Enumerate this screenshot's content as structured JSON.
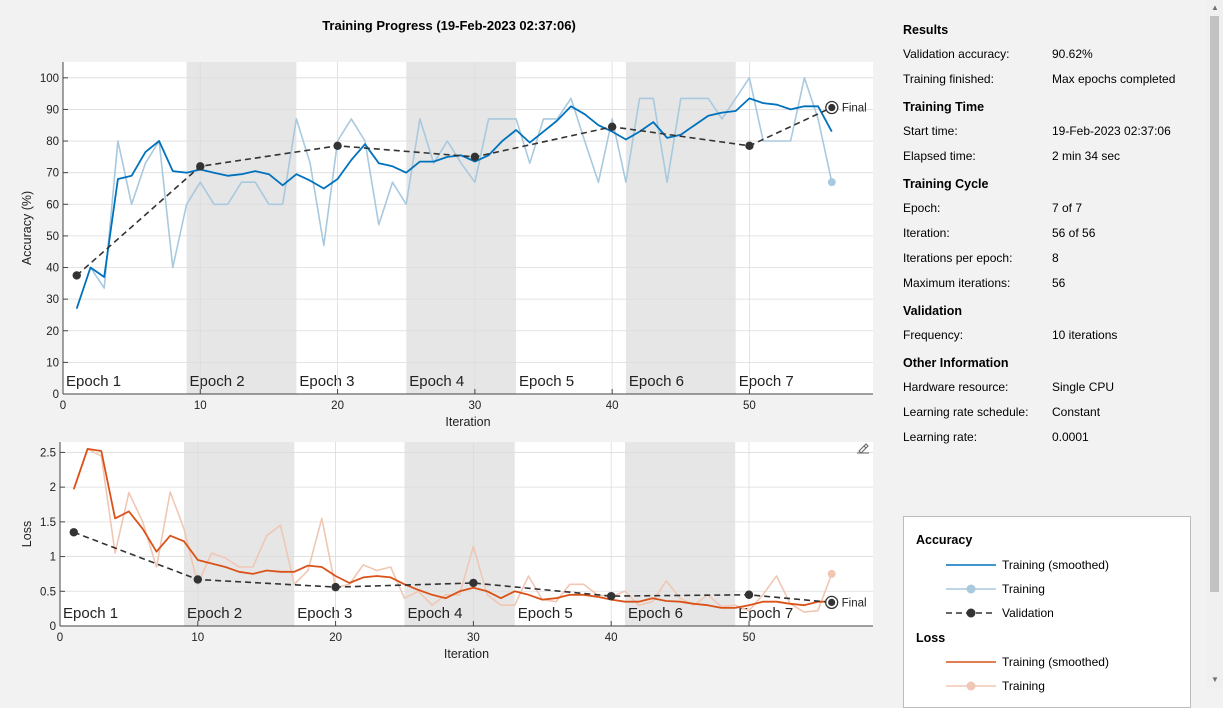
{
  "title": "Training Progress (19-Feb-2023 02:37:06)",
  "colors": {
    "smoothed_acc": "#0072bd",
    "training_acc": "#a9c9de",
    "validation": "#333333",
    "smoothed_loss": "#d95319",
    "training_loss": "#f0c7b4",
    "epoch_shade": "#e6e6e6"
  },
  "results": {
    "heading": "Results",
    "validation_accuracy": {
      "label": "Validation accuracy:",
      "value": "90.62%"
    },
    "training_finished": {
      "label": "Training finished:",
      "value": "Max epochs completed"
    }
  },
  "training_time": {
    "heading": "Training Time",
    "start_time": {
      "label": "Start time:",
      "value": "19-Feb-2023 02:37:06"
    },
    "elapsed_time": {
      "label": "Elapsed time:",
      "value": "2 min 34 sec"
    }
  },
  "training_cycle": {
    "heading": "Training Cycle",
    "epoch": {
      "label": "Epoch:",
      "value": "7 of 7"
    },
    "iteration": {
      "label": "Iteration:",
      "value": "56 of 56"
    },
    "iterations_per_epoch": {
      "label": "Iterations per epoch:",
      "value": "8"
    },
    "maximum_iterations": {
      "label": "Maximum iterations:",
      "value": "56"
    }
  },
  "validation": {
    "heading": "Validation",
    "frequency": {
      "label": "Frequency:",
      "value": "10 iterations"
    }
  },
  "other_information": {
    "heading": "Other Information",
    "hardware_resource": {
      "label": "Hardware resource:",
      "value": "Single CPU"
    },
    "learning_rate_schedule": {
      "label": "Learning rate schedule:",
      "value": "Constant"
    },
    "learning_rate": {
      "label": "Learning rate:",
      "value": "0.0001"
    }
  },
  "legend": {
    "accuracy_heading": "Accuracy",
    "accuracy_items": [
      "Training (smoothed)",
      "Training",
      "Validation"
    ],
    "loss_heading": "Loss",
    "loss_items": [
      "Training (smoothed)",
      "Training"
    ]
  },
  "chart_data": [
    {
      "type": "line",
      "xlabel": "Iteration",
      "ylabel": "Accuracy (%)",
      "xlim": [
        0,
        59
      ],
      "ylim": [
        0,
        105
      ],
      "xticks": [
        0,
        10,
        20,
        30,
        40,
        50
      ],
      "yticks": [
        0,
        10,
        20,
        30,
        40,
        50,
        60,
        70,
        80,
        90,
        100
      ],
      "epochs": [
        "Epoch 1",
        "Epoch 2",
        "Epoch 3",
        "Epoch 4",
        "Epoch 5",
        "Epoch 6",
        "Epoch 7"
      ],
      "iterations_per_epoch": 8,
      "final_label": "Final",
      "series": [
        {
          "name": "Training (smoothed)",
          "x": [
            1,
            2,
            3,
            4,
            5,
            6,
            7,
            8,
            9,
            10,
            11,
            12,
            13,
            14,
            15,
            16,
            17,
            18,
            19,
            20,
            21,
            22,
            23,
            24,
            25,
            26,
            27,
            28,
            29,
            30,
            31,
            32,
            33,
            34,
            35,
            36,
            37,
            38,
            39,
            40,
            41,
            42,
            43,
            44,
            45,
            46,
            47,
            48,
            49,
            50,
            51,
            52,
            53,
            54,
            55,
            56
          ],
          "y": [
            27,
            40,
            37,
            68,
            69,
            76.5,
            80,
            70.5,
            70,
            71,
            70,
            69,
            69.5,
            70.5,
            69.5,
            66,
            69.5,
            67.5,
            65,
            68,
            74,
            79,
            73,
            72,
            70,
            73.5,
            73.5,
            75,
            75.5,
            73.5,
            75.5,
            80,
            83.5,
            79.5,
            83,
            86.5,
            91,
            88.5,
            85,
            83,
            80.5,
            83,
            86,
            81,
            82,
            85,
            88,
            89,
            89.5,
            93.5,
            92,
            91.5,
            90,
            91,
            91,
            83
          ]
        },
        {
          "name": "Training",
          "x": [
            1,
            2,
            3,
            4,
            5,
            6,
            7,
            8,
            9,
            10,
            11,
            12,
            13,
            14,
            15,
            16,
            17,
            18,
            19,
            20,
            21,
            22,
            23,
            24,
            25,
            26,
            27,
            28,
            29,
            30,
            31,
            32,
            33,
            34,
            35,
            36,
            37,
            38,
            39,
            40,
            41,
            42,
            43,
            44,
            45,
            46,
            47,
            48,
            49,
            50,
            51,
            52,
            53,
            54,
            55,
            56
          ],
          "y": [
            27,
            40,
            33.5,
            80,
            60,
            73,
            80,
            40,
            60,
            67,
            60,
            60,
            67,
            67,
            60,
            60,
            87,
            73,
            47,
            80,
            87,
            80,
            53.5,
            67,
            60,
            87,
            73,
            80,
            73,
            67,
            87,
            87,
            87,
            73,
            87,
            87,
            93.5,
            80,
            67,
            87,
            67,
            93.5,
            93.5,
            67,
            93.5,
            93.5,
            93.5,
            87,
            93.5,
            100,
            80,
            80,
            80,
            100,
            87,
            67
          ]
        },
        {
          "name": "Validation",
          "x": [
            1,
            10,
            20,
            30,
            40,
            50,
            56
          ],
          "y": [
            37.5,
            72,
            78.5,
            75,
            84.5,
            78.5,
            90.6
          ]
        }
      ]
    },
    {
      "type": "line",
      "xlabel": "Iteration",
      "ylabel": "Loss",
      "xlim": [
        0,
        59
      ],
      "ylim": [
        0,
        2.65
      ],
      "xticks": [
        0,
        10,
        20,
        30,
        40,
        50
      ],
      "yticks": [
        0,
        0.5,
        1,
        1.5,
        2,
        2.5
      ],
      "epochs": [
        "Epoch 1",
        "Epoch 2",
        "Epoch 3",
        "Epoch 4",
        "Epoch 5",
        "Epoch 6",
        "Epoch 7"
      ],
      "iterations_per_epoch": 8,
      "final_label": "Final",
      "series": [
        {
          "name": "Training (smoothed)",
          "x": [
            1,
            2,
            3,
            4,
            5,
            6,
            7,
            8,
            9,
            10,
            11,
            12,
            13,
            14,
            15,
            16,
            17,
            18,
            19,
            20,
            21,
            22,
            23,
            24,
            25,
            26,
            27,
            28,
            29,
            30,
            31,
            32,
            33,
            34,
            35,
            36,
            37,
            38,
            39,
            40,
            41,
            42,
            43,
            44,
            45,
            46,
            47,
            48,
            49,
            50,
            51,
            52,
            53,
            54,
            55,
            56
          ],
          "y": [
            1.97,
            2.55,
            2.52,
            1.55,
            1.65,
            1.4,
            1.07,
            1.3,
            1.22,
            0.95,
            0.9,
            0.85,
            0.78,
            0.75,
            0.8,
            0.78,
            0.78,
            0.87,
            0.85,
            0.72,
            0.62,
            0.7,
            0.72,
            0.7,
            0.6,
            0.52,
            0.45,
            0.4,
            0.5,
            0.55,
            0.5,
            0.4,
            0.5,
            0.45,
            0.38,
            0.4,
            0.45,
            0.45,
            0.42,
            0.38,
            0.35,
            0.35,
            0.4,
            0.36,
            0.35,
            0.32,
            0.3,
            0.26,
            0.26,
            0.3,
            0.35,
            0.35,
            0.32,
            0.3,
            0.35,
            0.35
          ]
        },
        {
          "name": "Training",
          "x": [
            1,
            2,
            3,
            4,
            5,
            6,
            7,
            8,
            9,
            10,
            11,
            12,
            13,
            14,
            15,
            16,
            17,
            18,
            19,
            20,
            21,
            22,
            23,
            24,
            25,
            26,
            27,
            28,
            29,
            30,
            31,
            32,
            33,
            34,
            35,
            36,
            37,
            38,
            39,
            40,
            41,
            42,
            43,
            44,
            45,
            46,
            47,
            48,
            49,
            50,
            51,
            52,
            53,
            54,
            55,
            56
          ],
          "y": [
            1.97,
            2.55,
            2.45,
            1.05,
            1.92,
            1.5,
            0.85,
            1.93,
            1.4,
            0.6,
            1.05,
            0.98,
            0.85,
            0.85,
            1.3,
            1.45,
            0.6,
            0.8,
            1.55,
            0.55,
            0.6,
            0.88,
            0.8,
            0.85,
            0.4,
            0.5,
            0.3,
            0.45,
            0.45,
            1.15,
            0.45,
            0.3,
            0.3,
            0.72,
            0.38,
            0.35,
            0.6,
            0.6,
            0.45,
            0.42,
            0.5,
            0.3,
            0.35,
            0.65,
            0.4,
            0.3,
            0.45,
            0.28,
            0.3,
            0.22,
            0.45,
            0.72,
            0.32,
            0.2,
            0.22,
            0.75
          ]
        },
        {
          "name": "Validation",
          "x": [
            1,
            10,
            20,
            30,
            40,
            50,
            56
          ],
          "y": [
            1.35,
            0.67,
            0.56,
            0.62,
            0.43,
            0.45,
            0.34
          ]
        }
      ]
    }
  ]
}
